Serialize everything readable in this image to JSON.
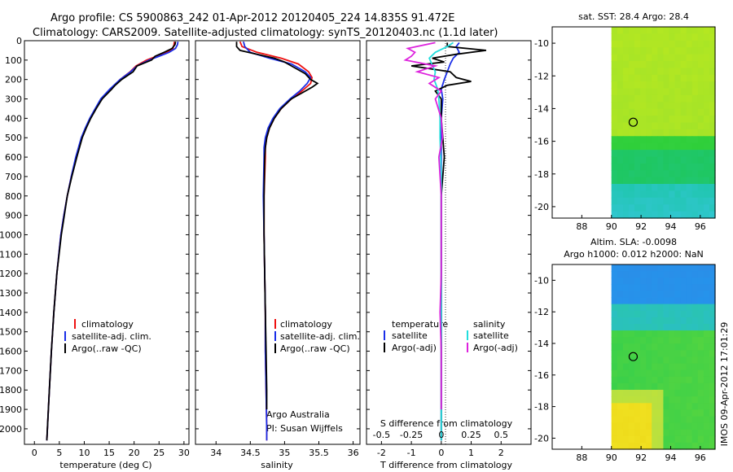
{
  "header": {
    "line1": "Argo profile: CS 5900863_242 01-Apr-2012 20120405_224 14.835S 91.472E",
    "line2": "Climatology: CARS2009. Satellite-adjusted climatology: synTS_20120403.nc (1.1d later)"
  },
  "colors": {
    "climatology": "#ee1111",
    "satellite": "#1a2ee8",
    "argo": "#000000",
    "sat_salinity": "#22dddd",
    "argo_salinity": "#dd22dd"
  },
  "chart_data": [
    {
      "type": "line",
      "name": "temperature-panel",
      "xlabel": "temperature (deg C)",
      "xlim": [
        -2,
        31
      ],
      "xticks": [
        0,
        5,
        10,
        15,
        20,
        25,
        30
      ],
      "ylim": [
        2080,
        0
      ],
      "yticks": [
        0,
        100,
        200,
        300,
        400,
        500,
        600,
        700,
        800,
        900,
        1000,
        1100,
        1200,
        1300,
        1400,
        1500,
        1600,
        1700,
        1800,
        1900,
        2000
      ],
      "legend": [
        "climatology",
        "satellite-adj. clim.",
        "Argo(..raw -QC)"
      ],
      "series": [
        {
          "name": "climatology",
          "depth": [
            5,
            20,
            40,
            60,
            80,
            100,
            130,
            160,
            200,
            250,
            300,
            350,
            400,
            450,
            500,
            600,
            700,
            800,
            900,
            1000,
            1200,
            1400,
            1600,
            1800,
            2000,
            2060
          ],
          "values": [
            28.1,
            28.0,
            27.8,
            26.5,
            24.5,
            22.5,
            20.4,
            19.2,
            17.2,
            15.2,
            13.4,
            12.3,
            11.2,
            10.3,
            9.5,
            8.4,
            7.4,
            6.6,
            5.9,
            5.3,
            4.5,
            3.9,
            3.4,
            3.0,
            2.6,
            2.5
          ]
        },
        {
          "name": "satellite-adj. clim.",
          "depth": [
            5,
            20,
            40,
            60,
            80,
            100,
            130,
            160,
            200,
            250,
            300,
            350,
            400,
            450,
            500,
            600,
            700,
            800,
            900,
            1000,
            1200,
            1400,
            1600,
            1800,
            2000,
            2060
          ],
          "values": [
            28.8,
            28.7,
            28.3,
            27.0,
            25.0,
            23.0,
            20.6,
            19.3,
            17.2,
            15.1,
            13.3,
            12.2,
            11.1,
            10.2,
            9.4,
            8.3,
            7.4,
            6.6,
            5.9,
            5.3,
            4.5,
            3.9,
            3.4,
            3.0,
            2.6,
            2.5
          ]
        },
        {
          "name": "Argo(..raw -QC)",
          "depth": [
            5,
            20,
            40,
            60,
            80,
            100,
            130,
            160,
            200,
            230,
            250,
            300,
            350,
            400,
            450,
            500,
            600,
            700,
            800,
            900,
            1000,
            1200,
            1400,
            1600,
            1800,
            2000,
            2060
          ],
          "values": [
            28.3,
            28.2,
            27.6,
            26.0,
            24.2,
            23.5,
            20.6,
            19.8,
            17.5,
            16.2,
            15.5,
            13.6,
            12.4,
            11.3,
            10.4,
            9.6,
            8.5,
            7.5,
            6.6,
            6.0,
            5.4,
            4.5,
            3.9,
            3.4,
            3.0,
            2.6,
            2.5
          ]
        }
      ]
    },
    {
      "type": "line",
      "name": "salinity-panel",
      "xlabel": "salinity",
      "xlim": [
        33.7,
        36.1
      ],
      "xticks": [
        34,
        34.5,
        35,
        35.5,
        36
      ],
      "ylim": [
        2080,
        0
      ],
      "legend": [
        "climatology",
        "satellite-adj. clim.",
        "Argo(..raw -QC)"
      ],
      "annotation": [
        "Argo Australia",
        "PI: Susan Wijffels"
      ],
      "series": [
        {
          "name": "climatology",
          "depth": [
            5,
            30,
            60,
            90,
            120,
            160,
            190,
            220,
            260,
            300,
            350,
            400,
            450,
            500,
            550,
            600,
            800,
            1000,
            1200,
            1400,
            1600,
            1800,
            2000,
            2060
          ],
          "values": [
            34.35,
            34.38,
            34.6,
            34.95,
            35.2,
            35.35,
            35.4,
            35.38,
            35.25,
            35.1,
            34.95,
            34.85,
            34.78,
            34.74,
            34.72,
            34.72,
            34.7,
            34.7,
            34.71,
            34.72,
            34.72,
            34.73,
            34.74,
            34.74
          ]
        },
        {
          "name": "satellite-adj. clim.",
          "depth": [
            5,
            30,
            60,
            90,
            120,
            160,
            190,
            220,
            260,
            300,
            350,
            400,
            450,
            500,
            550,
            600,
            800,
            1000,
            1200,
            1400,
            1600,
            1800,
            2000,
            2060
          ],
          "values": [
            34.4,
            34.42,
            34.5,
            34.78,
            35.1,
            35.3,
            35.38,
            35.33,
            35.22,
            35.08,
            34.93,
            34.83,
            34.76,
            34.72,
            34.7,
            34.7,
            34.69,
            34.7,
            34.71,
            34.72,
            34.72,
            34.73,
            34.74,
            34.74
          ]
        },
        {
          "name": "Argo(..raw -QC)",
          "depth": [
            5,
            30,
            50,
            70,
            90,
            110,
            140,
            170,
            200,
            220,
            240,
            270,
            300,
            350,
            400,
            450,
            500,
            550,
            600,
            800,
            1000,
            1200,
            1400,
            1600,
            1800,
            1900
          ],
          "values": [
            34.3,
            34.3,
            34.35,
            34.6,
            34.85,
            35.0,
            35.15,
            35.3,
            35.38,
            35.48,
            35.4,
            35.25,
            35.1,
            34.95,
            34.85,
            34.78,
            34.74,
            34.72,
            34.71,
            34.7,
            34.7,
            34.71,
            34.72,
            34.73,
            34.74,
            34.74
          ]
        }
      ]
    },
    {
      "type": "line",
      "name": "difference-panel",
      "xlabel": "T difference from climatology",
      "top_label": "S difference from climatology",
      "xlim": [
        -2.5,
        3
      ],
      "xticks": [
        -2,
        -1,
        0,
        1,
        2
      ],
      "top_xticks": [
        "-0.5",
        "-0.25",
        "0",
        "0.25",
        "0.5"
      ],
      "ylim": [
        2080,
        0
      ],
      "legend_titles": [
        "temperature",
        "salinity"
      ],
      "legend_t": [
        "satellite",
        "Argo(-adj)"
      ],
      "legend_s": [
        "satellite",
        "Argo(-adj)"
      ],
      "series": [
        {
          "name": "T satellite",
          "depth": [
            10,
            30,
            60,
            90,
            120,
            160,
            200,
            250,
            300,
            400,
            500,
            700,
            1000,
            1400,
            1800,
            2060
          ],
          "values": [
            0.6,
            0.5,
            0.6,
            0.4,
            0.3,
            0.2,
            0.1,
            0.0,
            0.05,
            0.0,
            0.0,
            0.0,
            0.0,
            0.0,
            0.0,
            0.0
          ]
        },
        {
          "name": "T Argo(-adj)",
          "depth": [
            10,
            30,
            50,
            70,
            90,
            110,
            130,
            160,
            190,
            210,
            230,
            260,
            300,
            400,
            500,
            600,
            800,
            1000,
            1400,
            1800,
            2060
          ],
          "values": [
            0.2,
            0.2,
            1.5,
            0.5,
            -0.3,
            0.1,
            -1.0,
            0.3,
            0.5,
            1.0,
            0.2,
            -0.2,
            0.0,
            0.0,
            0.05,
            0.1,
            0.0,
            0.0,
            0.0,
            0.0,
            0.0
          ]
        },
        {
          "name": "S satellite",
          "depth": [
            10,
            30,
            60,
            90,
            120,
            160,
            200,
            250,
            300,
            400,
            500,
            700,
            1000,
            1400,
            1800,
            2060
          ],
          "values": [
            0.1,
            0.05,
            -0.05,
            -0.1,
            -0.08,
            -0.05,
            -0.06,
            -0.03,
            -0.02,
            -0.01,
            -0.01,
            0.0,
            0.0,
            0.0,
            0.0,
            0.0
          ]
        },
        {
          "name": "S Argo(-adj)",
          "depth": [
            10,
            40,
            60,
            80,
            100,
            130,
            160,
            190,
            220,
            260,
            300,
            400,
            500,
            600,
            800,
            1000,
            1200,
            1400,
            1600,
            1800,
            1900
          ],
          "values": [
            -0.05,
            -0.28,
            -0.22,
            -0.25,
            -0.3,
            -0.05,
            -0.2,
            -0.02,
            -0.1,
            0.0,
            -0.05,
            0.0,
            0.01,
            -0.02,
            0.0,
            0.0,
            0.0,
            -0.01,
            0.0,
            0.0,
            0.0
          ]
        }
      ]
    },
    {
      "type": "heatmap",
      "name": "sst-map",
      "title": "sat. SST: 28.4  Argo: 28.4",
      "xlim": [
        86,
        97
      ],
      "ylim": [
        -20.7,
        -9
      ],
      "xticks": [
        88,
        90,
        92,
        94,
        96
      ],
      "yticks": [
        -10,
        -12,
        -14,
        -16,
        -18,
        -20
      ],
      "float_position": [
        91.47,
        -14.835
      ]
    },
    {
      "type": "heatmap",
      "name": "sla-map",
      "title1": "Altim. SLA: -0.0098",
      "title2": "Argo h1000: 0.012  h2000: NaN",
      "xlim": [
        86,
        97
      ],
      "ylim": [
        -20.7,
        -9
      ],
      "xticks": [
        88,
        90,
        92,
        94,
        96
      ],
      "yticks": [
        -10,
        -12,
        -14,
        -16,
        -18,
        -20
      ],
      "float_position": [
        91.47,
        -14.835
      ]
    }
  ],
  "footer": {
    "credit": "IMOS 09-Apr-2012 17:01:29"
  }
}
